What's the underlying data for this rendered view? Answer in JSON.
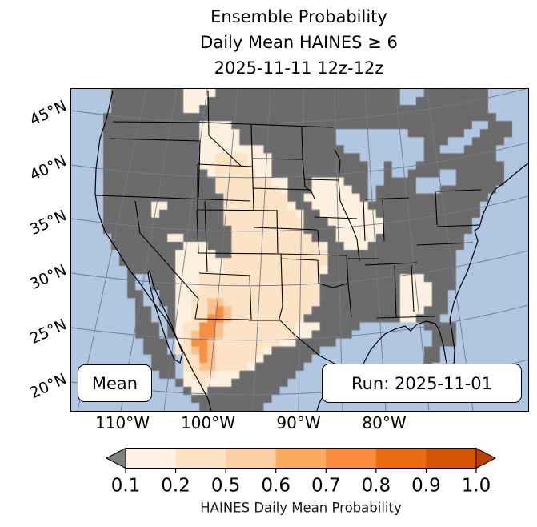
{
  "title": {
    "lines": [
      "Ensemble Probability",
      "Daily Mean HAINES ≥ 6",
      "2025-11-11 12z-12z"
    ]
  },
  "map": {
    "lat_labels": [
      "45°N",
      "40°N",
      "35°N",
      "30°N",
      "25°N",
      "20°N"
    ],
    "lon_labels": [
      "110°W",
      "100°W",
      "90°W",
      "80°W"
    ],
    "annotations": {
      "mean": "Mean",
      "run": "Run: 2025-11-01"
    },
    "colors": {
      "ocean": "#b1c6e0",
      "land": "#6b6b6b",
      "gridline": "#6f7d8c",
      "state_border": "#000000",
      "prob_0_1": "#fdf0df",
      "prob_0_2": "#fde3c6",
      "prob_0_5": "#fdc18d",
      "prob_0_6": "#f78f44"
    },
    "grid": {
      "cols": 57,
      "rows": 40,
      "cell_legend": {
        "~": "ocean",
        "L": "land",
        "1": "prob_0_1",
        "2": "prob_0_2",
        "3": "prob_0_5",
        "4": "prob_0_6"
      },
      "rows_data": [
        "~~~~~LLLLLLLLL1111LLLLLLLLLLLLLLLLLLLLLLL~~~LLLLLLLL~~~~~",
        "~~~~~LLLLLLLLL111LLLLLLLLLLLLLLLLLLLLLLLL~~LLLLLLLLL~~~~~",
        "~~~~~LLLLLLLLL11LLLLLLLLLLLLLLLLLLLLLLLLLLLLLLLLLLLL~~~~~",
        "~~~~LLLLLLLLLLLLLLLLLLLLLLLLLLLLLLLLLLLLLLLLLLLLLLLLL~~~~",
        "~~~~LLLLLLLLLLLL1111LLLLLLLLLLLLLLLLLLLLLLLLLLLLLL~~LLL~~",
        "~~~~LLLLLLLLLLLL11111LLLLLLLLLLLL~~~~~~~~~LLLLLLL~~LLLL~~",
        "~~~~LLLLLLLLLLLL11111LLLLLLLLLLLL~~~~~~~~~~~LLL~~~LLLL~~~",
        "~~~~LLLLLLLLLLLL11111111LLLLLLLLLL~~~~~~~~~~LL~~~LLLL~~~~",
        "~~~~LLLLLLLLLLLL112222111LLLLLLLLLLL~~~~~~~~LLLLLLLLL~~~~",
        "~~~~LLLLLLLLLLLL112222111LLLLLLLLLLLL~~L~~~LLLLLLLLLLL~~~",
        "~~~~LLLLLLLLLLLLL12222211LLLLLLLLLLLL~~L~~LLLL~~LLLLLL~~~",
        "~~~~LLLLLLLLLLLLLL222222211LLL1111LLL~~LLLL~~~~~LLLLLL~~~",
        "~~~~LLLLLLLLLLLLLL222222221LLL11111LL~LLLLL~~~LLLLLLL~~~~",
        "~~~~LLLLLLLLLLLLLLL22222222LL1111111L~LLLLLLLLLLLLLL~~~~~",
        "~~~~LLLLLL11LLLLLLL222222221LL1111111LLLLLLLLLLLLLL~~~~~~",
        "~~~~LLLLLL1LLLLLLLL2222222221LL1111111LLLLLLLLLLLLL~~~~~~",
        "~~~~LLLLLLLLLLLLLLL2222222222LLL1111111LLLLLLLLLLL~~~~~~~",
        "~~~~LLLLLLLLLLLLLLLL222222222LLLL111111LLLLLLLLLLL~~~~~~~",
        "~~~~~LLLLLLL11LLLLLL2222222222LLL11111LLLLLLLLLLL~~~~~~~~",
        "~~~~~LLLLLLLLL111LLL222222222221LL111LLLLLLLLLLLL~~~~~~~~",
        "~~~~~~LLLLLLL11111LL222222222222LLLLLLLLLLLLLLLL~~~~~~~~~",
        "~~~~~~LLLLLLL1111112222222222222LLLLLLLLLLLLLLLL~~~~~~~~~",
        "~~~~~~~LLLLLL1111112222222222221LLLLLLLLLLLLLLLL~~~~~~~~~",
        "~~~~~~~L~~LLL111222222222222222LLLLLLLLLL111LLLL~~~~~~~~~",
        "~~~~~~~L~~LLL111222222222222222LLLLLLLLLL1111LLL~~~~~~~~~",
        "~~~~~~~LL~~LL112222222222222222LLLLLLLLLL1111LL~~~~~~~~~~",
        "~~~~~~~~L~~LL112233222222222222LLLLLLLLLL1111LL~~~~~~~~~~",
        "~~~~~~~~LL~~L11223432222222222LLLLLLLLLLL111LLL~~~~~~~~~~",
        "~~~~~~~~LL~~L1122443222222222LLLLLLLLLLLL11LLL~~~~~~~~~~~",
        "~~~~~~~~LLL~L122443222222222111LLLLL~~~~~~~~LLLL~~~~~~~~~",
        "~~~~~~~~LLL~L12344322222222211LLLLL~~~~~~~~~~LLL~~~~~~~~~~",
        "~~~~~~~~~LLL~124432222222211LLLLL~~~~~~~~~~~~LLL~~~~~~~~~~",
        "~~~~~~~~~LLL~223432222221LLLLLL~~~~~~~~~~~~~LL~~~~~~~~~~~",
        "~~~~~~~~~~LLL~2243222221LLLLLL~~~~~~~~~~~~~~LL~~~~~~~~~~~",
        "~~~~~~~~~~LLL~223322221LLLLLL~~~~~~~~~~~~~~~L~~~~~~~~~~~~",
        "~~~~~~~~~~~LL~1222111LLLLLLL~~~~~~~~~~~~~~~~L~~~~~~~~~~~~",
        "~~~~~~~~~~~~~L112111LLLLLLL~~~~~~~~~~~~~~~~~~~~~~~~~~~~~~",
        "~~~~~~~~~~~~~~L11LLLLLLLLL~~~~~~~~~~~~~~~~~~~~~~~~~~~~~~~",
        "~~~~~~~~~~~~~~~LLLLLLLLLL~~~~~~~~~~~~~~~~~~~~~~~~~~~~~~~~",
        "~~~~~~~~~~~~~~~~LLLLLLLL~~~~~~~~~~~~~~~~~~~~~~~~~~~~~~~~~"
      ]
    }
  },
  "colorbar": {
    "tick_labels": [
      "0.1",
      "0.2",
      "0.5",
      "0.6",
      "0.7",
      "0.8",
      "0.9",
      "1.0"
    ],
    "segment_colors": [
      "#fdf2e4",
      "#fde2c3",
      "#fdcfa2",
      "#fdaa5e",
      "#fb8c3e",
      "#ee6c10",
      "#d65303"
    ],
    "under_color": "#808080",
    "over_color": "#bd4002",
    "label": "HAINES Daily Mean Probability"
  }
}
